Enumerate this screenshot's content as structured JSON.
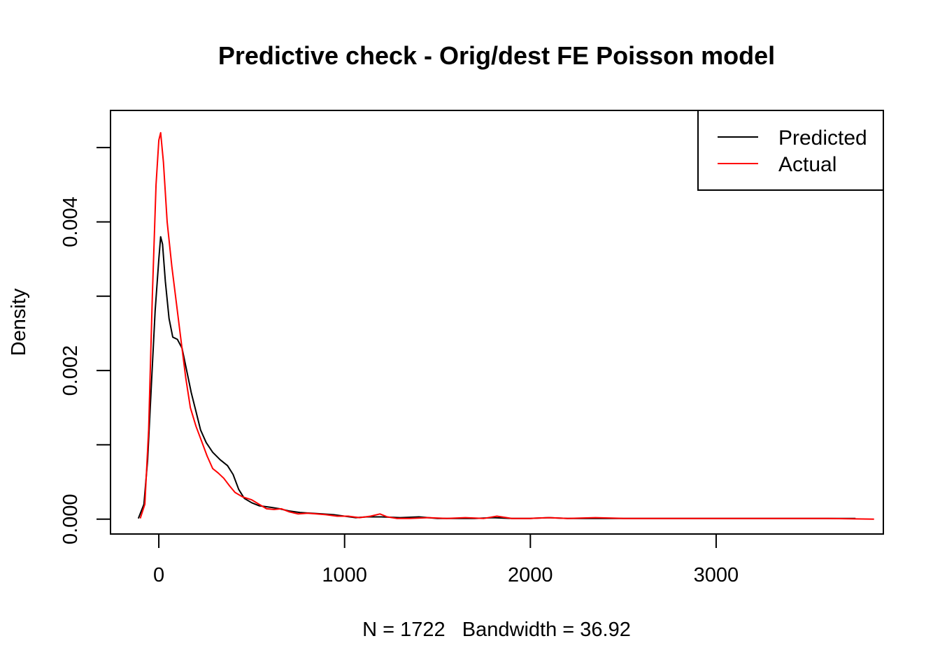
{
  "chart_data": {
    "type": "line",
    "title": "Predictive check - Orig/dest FE Poisson model",
    "xlabel": "N = 1722   Bandwidth = 36.92",
    "ylabel": "Density",
    "xlim": [
      -260,
      3900
    ],
    "ylim": [
      -0.0002,
      0.0055
    ],
    "x_ticks": [
      {
        "value": 0,
        "label": "0"
      },
      {
        "value": 1000,
        "label": "1000"
      },
      {
        "value": 2000,
        "label": "2000"
      },
      {
        "value": 3000,
        "label": "3000"
      }
    ],
    "y_ticks": [
      {
        "value": 0.0,
        "label": "0.000"
      },
      {
        "value": 0.001,
        "label": ""
      },
      {
        "value": 0.002,
        "label": "0.002"
      },
      {
        "value": 0.003,
        "label": ""
      },
      {
        "value": 0.004,
        "label": "0.004"
      },
      {
        "value": 0.005,
        "label": ""
      }
    ],
    "legend_position": "top-right",
    "series": [
      {
        "name": "Predicted",
        "color": "#000000",
        "points": [
          [
            -110,
            1e-05
          ],
          [
            -80,
            0.0002
          ],
          [
            -60,
            0.0008
          ],
          [
            -40,
            0.0018
          ],
          [
            -20,
            0.0028
          ],
          [
            0,
            0.0035
          ],
          [
            10,
            0.0038
          ],
          [
            20,
            0.0037
          ],
          [
            35,
            0.0032
          ],
          [
            55,
            0.0027
          ],
          [
            75,
            0.00245
          ],
          [
            100,
            0.00242
          ],
          [
            125,
            0.0023
          ],
          [
            150,
            0.002
          ],
          [
            175,
            0.0017
          ],
          [
            200,
            0.00145
          ],
          [
            225,
            0.0012
          ],
          [
            255,
            0.00103
          ],
          [
            290,
            0.0009
          ],
          [
            330,
            0.0008
          ],
          [
            370,
            0.00072
          ],
          [
            400,
            0.0006
          ],
          [
            430,
            0.0004
          ],
          [
            460,
            0.00028
          ],
          [
            500,
            0.00022
          ],
          [
            540,
            0.00018
          ],
          [
            600,
            0.00016
          ],
          [
            650,
            0.00014
          ],
          [
            700,
            0.00011
          ],
          [
            760,
            9e-05
          ],
          [
            820,
            8e-05
          ],
          [
            880,
            7e-05
          ],
          [
            940,
            6e-05
          ],
          [
            1000,
            4e-05
          ],
          [
            1060,
            2e-05
          ],
          [
            1120,
            3e-05
          ],
          [
            1200,
            3e-05
          ],
          [
            1300,
            2e-05
          ],
          [
            1400,
            3e-05
          ],
          [
            1500,
            1e-05
          ],
          [
            1600,
            1e-05
          ],
          [
            1700,
            1e-05
          ],
          [
            1800,
            2e-05
          ],
          [
            1900,
            1e-05
          ],
          [
            2000,
            1e-05
          ],
          [
            2100,
            2e-05
          ],
          [
            2200,
            1e-05
          ],
          [
            2300,
            1e-05
          ],
          [
            2500,
            1e-05
          ],
          [
            2700,
            1e-05
          ],
          [
            3000,
            1e-05
          ],
          [
            3300,
            1e-05
          ],
          [
            3600,
            1e-05
          ],
          [
            3750,
            1e-05
          ]
        ]
      },
      {
        "name": "Actual",
        "color": "#ff0000",
        "points": [
          [
            -100,
            1e-05
          ],
          [
            -75,
            0.0002
          ],
          [
            -55,
            0.0012
          ],
          [
            -35,
            0.003
          ],
          [
            -15,
            0.0045
          ],
          [
            0,
            0.0051
          ],
          [
            10,
            0.0052
          ],
          [
            25,
            0.0048
          ],
          [
            45,
            0.004
          ],
          [
            70,
            0.0034
          ],
          [
            95,
            0.0029
          ],
          [
            120,
            0.0024
          ],
          [
            145,
            0.0019
          ],
          [
            170,
            0.0015
          ],
          [
            200,
            0.00125
          ],
          [
            230,
            0.00105
          ],
          [
            260,
            0.00085
          ],
          [
            290,
            0.00068
          ],
          [
            320,
            0.00062
          ],
          [
            350,
            0.00055
          ],
          [
            380,
            0.00045
          ],
          [
            410,
            0.00036
          ],
          [
            450,
            0.0003
          ],
          [
            500,
            0.00026
          ],
          [
            540,
            0.0002
          ],
          [
            580,
            0.00014
          ],
          [
            620,
            0.00013
          ],
          [
            660,
            0.00014
          ],
          [
            700,
            0.0001
          ],
          [
            750,
            7e-05
          ],
          [
            800,
            8e-05
          ],
          [
            850,
            7e-05
          ],
          [
            900,
            6e-05
          ],
          [
            960,
            4e-05
          ],
          [
            1020,
            4e-05
          ],
          [
            1080,
            2e-05
          ],
          [
            1140,
            4e-05
          ],
          [
            1190,
            7e-05
          ],
          [
            1230,
            3e-05
          ],
          [
            1280,
            1e-05
          ],
          [
            1350,
            1e-05
          ],
          [
            1450,
            2e-05
          ],
          [
            1550,
            1e-05
          ],
          [
            1650,
            2e-05
          ],
          [
            1750,
            1e-05
          ],
          [
            1820,
            4e-05
          ],
          [
            1900,
            1e-05
          ],
          [
            2000,
            1e-05
          ],
          [
            2100,
            2e-05
          ],
          [
            2200,
            1e-05
          ],
          [
            2350,
            2e-05
          ],
          [
            2500,
            1e-05
          ],
          [
            2700,
            1e-05
          ],
          [
            3000,
            1e-05
          ],
          [
            3300,
            1e-05
          ],
          [
            3600,
            1e-05
          ],
          [
            3850,
            0.0
          ]
        ]
      }
    ]
  }
}
